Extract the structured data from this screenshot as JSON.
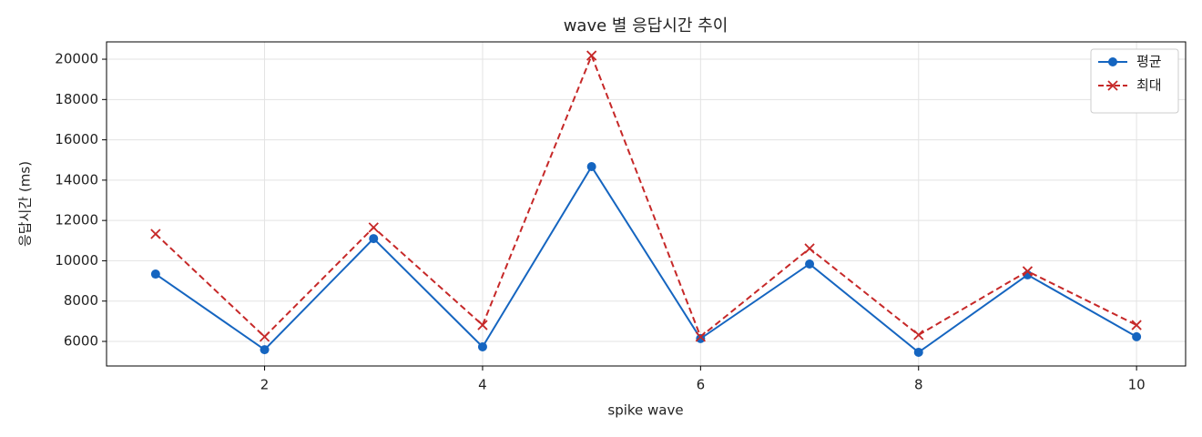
{
  "chart_data": {
    "type": "line",
    "title": "wave 별 응답시간 추이",
    "xlabel": "spike wave",
    "ylabel": "응답시간 (ms)",
    "x": [
      1,
      2,
      3,
      4,
      5,
      6,
      7,
      8,
      9,
      10
    ],
    "series": [
      {
        "name": "평균",
        "color": "#1565c0",
        "marker": "circle",
        "dash": "solid",
        "values": [
          9340,
          5590,
          11100,
          5730,
          14670,
          6140,
          9840,
          5460,
          9300,
          6230
        ]
      },
      {
        "name": "최대",
        "color": "#c62828",
        "marker": "x",
        "dash": "dashed",
        "values": [
          11330,
          6230,
          11650,
          6810,
          20180,
          6230,
          10610,
          6320,
          9480,
          6810
        ]
      }
    ],
    "xlim": [
      0.55,
      10.45
    ],
    "xticks": [
      2,
      4,
      6,
      8,
      10
    ],
    "ylim": [
      4780,
      20860
    ],
    "yticks": [
      6000,
      8000,
      10000,
      12000,
      14000,
      16000,
      18000,
      20000
    ],
    "grid": true,
    "legend": "upper right"
  }
}
